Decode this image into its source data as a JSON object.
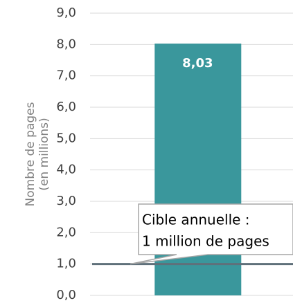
{
  "chart_data": {
    "type": "bar",
    "y_label": [
      "Nombre de pages",
      "(en millions)"
    ],
    "categories": [
      null
    ],
    "values": [
      8.03
    ],
    "value_labels": [
      "8,03"
    ],
    "color": "#3a979c",
    "ylim": [
      0,
      9
    ],
    "yticks": [
      {
        "value": 0,
        "label": "0,0"
      },
      {
        "value": 1,
        "label": "1,0"
      },
      {
        "value": 2,
        "label": "2,0"
      },
      {
        "value": 3,
        "label": "3,0"
      },
      {
        "value": 4,
        "label": "4,0"
      },
      {
        "value": 5,
        "label": "5,0"
      },
      {
        "value": 6,
        "label": "6,0"
      },
      {
        "value": 7,
        "label": "7,0"
      },
      {
        "value": 8,
        "label": "8,0"
      },
      {
        "value": 9,
        "label": "9,0"
      }
    ],
    "grid": true,
    "target": 1,
    "target_color": "#5f707a",
    "annotation": [
      "Cible annuelle :",
      "1 million de pages"
    ]
  }
}
